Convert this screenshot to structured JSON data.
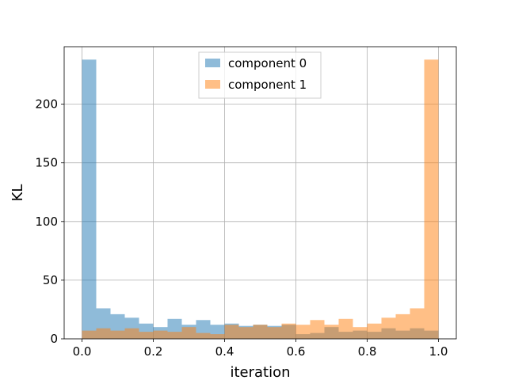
{
  "chart_data": {
    "type": "bar",
    "title": "",
    "xlabel": "iteration",
    "ylabel": "KL",
    "xlim": [
      -0.05,
      1.05
    ],
    "ylim": [
      0,
      249
    ],
    "grid": true,
    "legend_position": "top-center",
    "xticks": [
      0.0,
      0.2,
      0.4,
      0.6,
      0.8,
      1.0
    ],
    "xtick_labels": [
      "0.0",
      "0.2",
      "0.4",
      "0.6",
      "0.8",
      "1.0"
    ],
    "yticks": [
      0,
      50,
      100,
      150,
      200
    ],
    "ytick_labels": [
      "0",
      "50",
      "100",
      "150",
      "200"
    ],
    "bin_edges": [
      0.0,
      0.04,
      0.08,
      0.12,
      0.16,
      0.2,
      0.24,
      0.28,
      0.32,
      0.36,
      0.4,
      0.44,
      0.48,
      0.52,
      0.56,
      0.6,
      0.64,
      0.68,
      0.72,
      0.76,
      0.8,
      0.84,
      0.88,
      0.92,
      0.96,
      1.0
    ],
    "series": [
      {
        "name": "component 0",
        "color": "#1f77b4",
        "alpha": 0.5,
        "values": [
          238,
          26,
          21,
          18,
          13,
          10,
          17,
          12,
          16,
          12,
          13,
          11,
          12,
          11,
          12,
          4,
          5,
          10,
          6,
          7,
          6,
          9,
          7,
          9,
          7
        ]
      },
      {
        "name": "component 1",
        "color": "#ff7f0e",
        "alpha": 0.5,
        "values": [
          7,
          9,
          7,
          9,
          6,
          7,
          6,
          10,
          5,
          4,
          12,
          10,
          12,
          10,
          13,
          12,
          16,
          12,
          17,
          10,
          13,
          18,
          21,
          26,
          238
        ]
      }
    ]
  }
}
